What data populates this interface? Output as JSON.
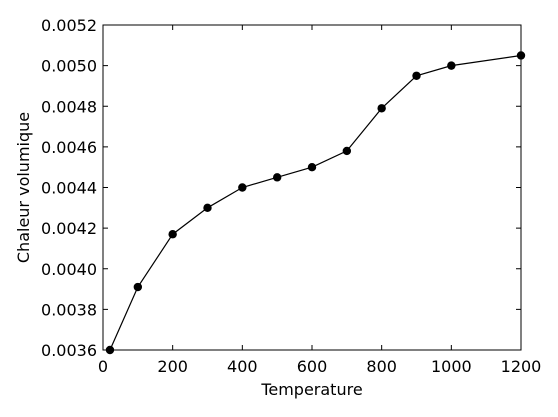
{
  "chart_data": {
    "type": "line",
    "title": "",
    "xlabel": "Temperature",
    "ylabel": "Chaleur volumique",
    "xlim": [
      0,
      1200
    ],
    "ylim": [
      0.0036,
      0.0052
    ],
    "xticks": [
      0,
      200,
      400,
      600,
      800,
      1000,
      1200
    ],
    "yticks": [
      0.0036,
      0.0038,
      0.004,
      0.0042,
      0.0044,
      0.0046,
      0.0048,
      0.005,
      0.0052
    ],
    "xtick_labels": [
      "0",
      "200",
      "400",
      "600",
      "800",
      "1000",
      "1200"
    ],
    "ytick_labels": [
      "0.0036",
      "0.0038",
      "0.0040",
      "0.0042",
      "0.0044",
      "0.0046",
      "0.0048",
      "0.0050",
      "0.0052"
    ],
    "grid": false,
    "legend": false,
    "series": [
      {
        "x": [
          20,
          100,
          200,
          300,
          400,
          500,
          600,
          700,
          800,
          900,
          1000,
          1200
        ],
        "y": [
          0.0036,
          0.00391,
          0.00417,
          0.0043,
          0.0044,
          0.00445,
          0.0045,
          0.00458,
          0.00479,
          0.00495,
          0.005,
          0.00505
        ],
        "color": "#000000",
        "marker": "circle"
      }
    ]
  }
}
